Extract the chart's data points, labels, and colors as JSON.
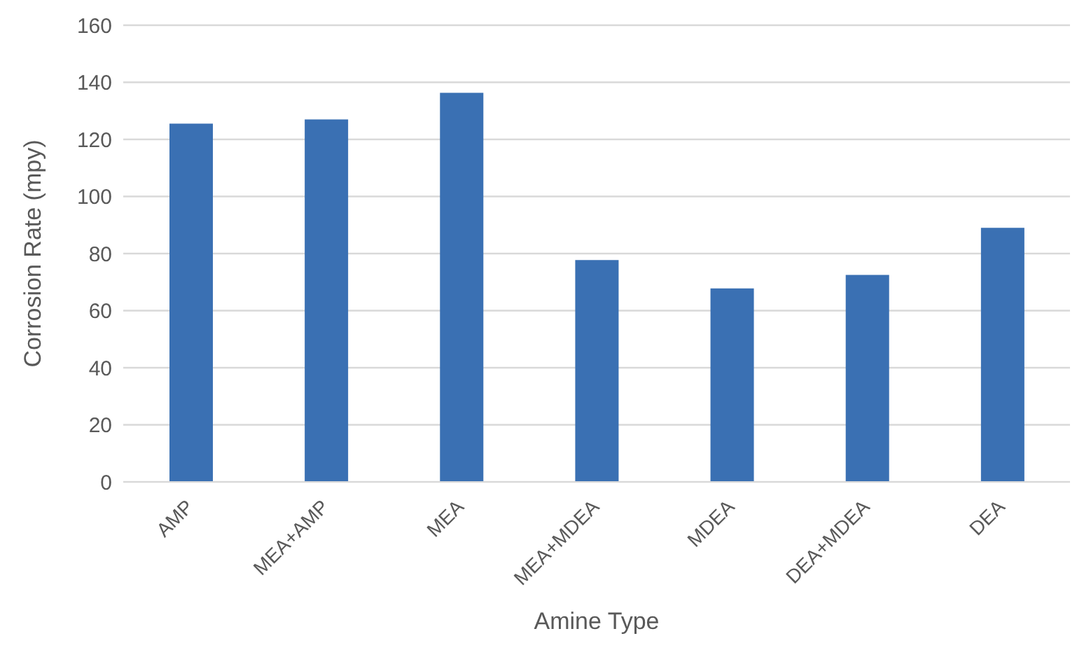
{
  "chart_data": {
    "type": "bar",
    "xlabel": "Amine Type",
    "ylabel": "Corrosion Rate (mpy)",
    "categories": [
      "AMP",
      "MEA+AMP",
      "MEA",
      "MEA+MDEA",
      "MDEA",
      "DEA+MDEA",
      "DEA"
    ],
    "values": [
      125.5,
      127,
      136.3,
      77.7,
      67.8,
      72.5,
      89
    ],
    "color": "#3a70b3",
    "ylim": [
      0,
      160
    ],
    "yticks": [
      0,
      20,
      40,
      60,
      80,
      100,
      120,
      140,
      160
    ],
    "grid": "y"
  }
}
